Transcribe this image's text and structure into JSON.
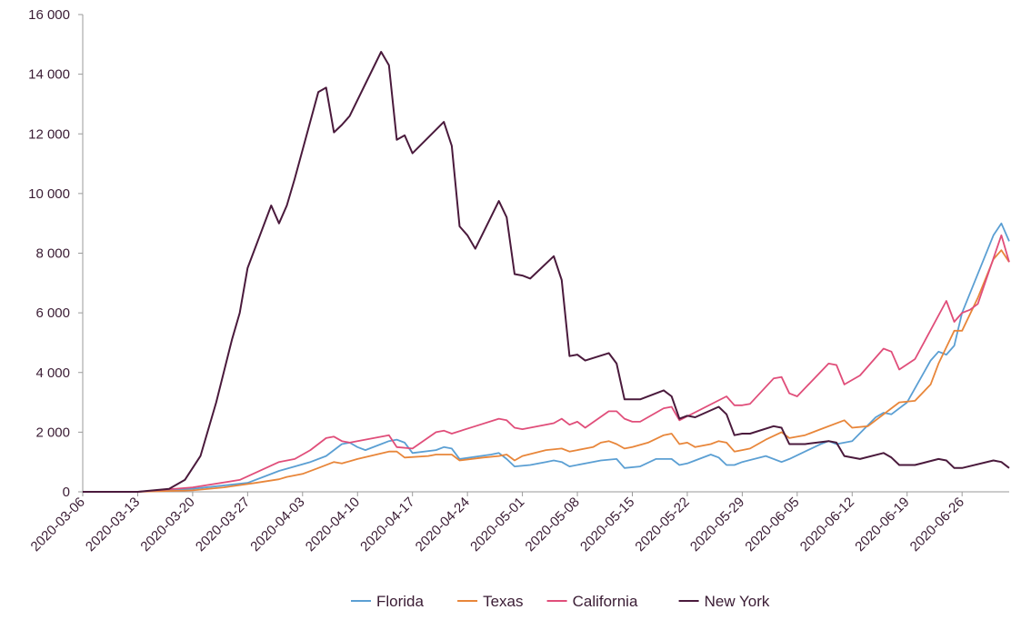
{
  "chart_data": {
    "type": "line",
    "title": "",
    "xlabel": "",
    "ylabel": "",
    "x_start": "2020-03-06",
    "x_end": "2020-07-02",
    "ylim": [
      0,
      16000
    ],
    "y_ticks": [
      {
        "value": 0,
        "label": "0"
      },
      {
        "value": 2000,
        "label": "2 000"
      },
      {
        "value": 4000,
        "label": "4 000"
      },
      {
        "value": 6000,
        "label": "6 000"
      },
      {
        "value": 8000,
        "label": "8 000"
      },
      {
        "value": 10000,
        "label": "10 000"
      },
      {
        "value": 12000,
        "label": "12 000"
      },
      {
        "value": 14000,
        "label": "14 000"
      },
      {
        "value": 16000,
        "label": "16 000"
      }
    ],
    "x_ticks": [
      "2020-03-06",
      "2020-03-13",
      "2020-03-20",
      "2020-03-27",
      "2020-04-03",
      "2020-04-10",
      "2020-04-17",
      "2020-04-24",
      "2020-05-01",
      "2020-05-08",
      "2020-05-15",
      "2020-05-22",
      "2020-05-29",
      "2020-06-05",
      "2020-06-12",
      "2020-06-19",
      "2020-06-26"
    ],
    "grid": false,
    "legend_position": "bottom",
    "series": [
      {
        "name": "Florida",
        "color": "#5b9fd3",
        "x": [
          "2020-03-06",
          "2020-03-13",
          "2020-03-20",
          "2020-03-27",
          "2020-03-29",
          "2020-03-31",
          "2020-04-02",
          "2020-04-04",
          "2020-04-06",
          "2020-04-07",
          "2020-04-08",
          "2020-04-09",
          "2020-04-10",
          "2020-04-11",
          "2020-04-13",
          "2020-04-14",
          "2020-04-15",
          "2020-04-16",
          "2020-04-17",
          "2020-04-20",
          "2020-04-21",
          "2020-04-22",
          "2020-04-23",
          "2020-04-27",
          "2020-04-28",
          "2020-04-29",
          "2020-04-30",
          "2020-05-02",
          "2020-05-04",
          "2020-05-05",
          "2020-05-06",
          "2020-05-07",
          "2020-05-11",
          "2020-05-13",
          "2020-05-14",
          "2020-05-16",
          "2020-05-18",
          "2020-05-20",
          "2020-05-21",
          "2020-05-22",
          "2020-05-25",
          "2020-05-26",
          "2020-05-27",
          "2020-05-28",
          "2020-05-29",
          "2020-06-01",
          "2020-06-03",
          "2020-06-04",
          "2020-06-08",
          "2020-06-09",
          "2020-06-10",
          "2020-06-12",
          "2020-06-15",
          "2020-06-16",
          "2020-06-17",
          "2020-06-19",
          "2020-06-22",
          "2020-06-23",
          "2020-06-24",
          "2020-06-25",
          "2020-06-26",
          "2020-06-30",
          "2020-07-01",
          "2020-07-02"
        ],
        "values": [
          0,
          0,
          100,
          300,
          500,
          700,
          850,
          1000,
          1200,
          1400,
          1600,
          1650,
          1500,
          1400,
          1600,
          1700,
          1750,
          1650,
          1300,
          1400,
          1500,
          1450,
          1100,
          1250,
          1300,
          1100,
          850,
          900,
          1000,
          1050,
          1000,
          850,
          1050,
          1100,
          800,
          850,
          1100,
          1100,
          900,
          950,
          1250,
          1150,
          900,
          900,
          1000,
          1200,
          1000,
          1100,
          1600,
          1700,
          1600,
          1700,
          2500,
          2650,
          2600,
          3000,
          4400,
          4700,
          4600,
          4900,
          6000,
          8600,
          9000,
          8400
        ]
      },
      {
        "name": "Texas",
        "color": "#e8863a",
        "x": [
          "2020-03-06",
          "2020-03-13",
          "2020-03-20",
          "2020-03-24",
          "2020-03-28",
          "2020-03-31",
          "2020-04-01",
          "2020-04-03",
          "2020-04-05",
          "2020-04-07",
          "2020-04-08",
          "2020-04-10",
          "2020-04-14",
          "2020-04-15",
          "2020-04-16",
          "2020-04-19",
          "2020-04-20",
          "2020-04-22",
          "2020-04-23",
          "2020-04-26",
          "2020-04-28",
          "2020-04-29",
          "2020-04-30",
          "2020-05-01",
          "2020-05-04",
          "2020-05-06",
          "2020-05-07",
          "2020-05-08",
          "2020-05-10",
          "2020-05-11",
          "2020-05-12",
          "2020-05-13",
          "2020-05-14",
          "2020-05-15",
          "2020-05-17",
          "2020-05-19",
          "2020-05-20",
          "2020-05-21",
          "2020-05-22",
          "2020-05-23",
          "2020-05-25",
          "2020-05-26",
          "2020-05-27",
          "2020-05-28",
          "2020-05-29",
          "2020-05-30",
          "2020-06-01",
          "2020-06-03",
          "2020-06-04",
          "2020-06-06",
          "2020-06-08",
          "2020-06-11",
          "2020-06-12",
          "2020-06-14",
          "2020-06-17",
          "2020-06-18",
          "2020-06-20",
          "2020-06-22",
          "2020-06-23",
          "2020-06-25",
          "2020-06-26",
          "2020-06-28",
          "2020-06-30",
          "2020-07-01",
          "2020-07-02"
        ],
        "values": [
          0,
          0,
          50,
          150,
          300,
          420,
          500,
          600,
          800,
          1000,
          950,
          1100,
          1350,
          1350,
          1150,
          1200,
          1250,
          1250,
          1050,
          1150,
          1200,
          1250,
          1050,
          1200,
          1400,
          1450,
          1350,
          1400,
          1500,
          1650,
          1700,
          1600,
          1450,
          1500,
          1650,
          1900,
          1950,
          1600,
          1650,
          1500,
          1600,
          1700,
          1650,
          1350,
          1400,
          1450,
          1750,
          2000,
          1800,
          1900,
          2100,
          2400,
          2150,
          2200,
          2800,
          3000,
          3050,
          3600,
          4300,
          5400,
          5400,
          6500,
          7800,
          8100,
          7700
        ]
      },
      {
        "name": "California",
        "color": "#e04e7a",
        "x": [
          "2020-03-06",
          "2020-03-13",
          "2020-03-20",
          "2020-03-26",
          "2020-03-31",
          "2020-04-02",
          "2020-04-04",
          "2020-04-06",
          "2020-04-07",
          "2020-04-08",
          "2020-04-09",
          "2020-04-10",
          "2020-04-14",
          "2020-04-15",
          "2020-04-17",
          "2020-04-20",
          "2020-04-21",
          "2020-04-22",
          "2020-04-25",
          "2020-04-28",
          "2020-04-29",
          "2020-04-30",
          "2020-05-01",
          "2020-05-05",
          "2020-05-06",
          "2020-05-07",
          "2020-05-08",
          "2020-05-09",
          "2020-05-12",
          "2020-05-13",
          "2020-05-14",
          "2020-05-15",
          "2020-05-16",
          "2020-05-19",
          "2020-05-20",
          "2020-05-21",
          "2020-05-27",
          "2020-05-28",
          "2020-05-29",
          "2020-05-30",
          "2020-06-02",
          "2020-06-03",
          "2020-06-04",
          "2020-06-05",
          "2020-06-09",
          "2020-06-10",
          "2020-06-11",
          "2020-06-13",
          "2020-06-16",
          "2020-06-17",
          "2020-06-18",
          "2020-06-20",
          "2020-06-24",
          "2020-06-25",
          "2020-06-26",
          "2020-06-27",
          "2020-06-28",
          "2020-07-01",
          "2020-07-02"
        ],
        "values": [
          0,
          0,
          150,
          400,
          1000,
          1100,
          1400,
          1800,
          1850,
          1700,
          1650,
          1700,
          1900,
          1500,
          1450,
          2000,
          2050,
          1950,
          2200,
          2450,
          2400,
          2150,
          2100,
          2300,
          2450,
          2250,
          2350,
          2150,
          2700,
          2700,
          2450,
          2350,
          2350,
          2800,
          2850,
          2400,
          3200,
          2900,
          2900,
          2950,
          3800,
          3850,
          3300,
          3200,
          4300,
          4250,
          3600,
          3900,
          4800,
          4700,
          4100,
          4450,
          6400,
          5700,
          6000,
          6100,
          6300,
          8600,
          7700
        ]
      },
      {
        "name": "New York",
        "color": "#4a1a3c",
        "x": [
          "2020-03-06",
          "2020-03-13",
          "2020-03-17",
          "2020-03-19",
          "2020-03-21",
          "2020-03-23",
          "2020-03-25",
          "2020-03-26",
          "2020-03-27",
          "2020-03-30",
          "2020-03-31",
          "2020-04-01",
          "2020-04-02",
          "2020-04-05",
          "2020-04-06",
          "2020-04-07",
          "2020-04-08",
          "2020-04-09",
          "2020-04-13",
          "2020-04-14",
          "2020-04-15",
          "2020-04-16",
          "2020-04-17",
          "2020-04-21",
          "2020-04-22",
          "2020-04-23",
          "2020-04-24",
          "2020-04-25",
          "2020-04-28",
          "2020-04-29",
          "2020-04-30",
          "2020-05-01",
          "2020-05-02",
          "2020-05-05",
          "2020-05-06",
          "2020-05-07",
          "2020-05-08",
          "2020-05-09",
          "2020-05-12",
          "2020-05-13",
          "2020-05-14",
          "2020-05-16",
          "2020-05-19",
          "2020-05-20",
          "2020-05-21",
          "2020-05-22",
          "2020-05-23",
          "2020-05-26",
          "2020-05-27",
          "2020-05-28",
          "2020-05-29",
          "2020-05-30",
          "2020-06-02",
          "2020-06-03",
          "2020-06-04",
          "2020-06-06",
          "2020-06-09",
          "2020-06-10",
          "2020-06-11",
          "2020-06-13",
          "2020-06-16",
          "2020-06-17",
          "2020-06-18",
          "2020-06-20",
          "2020-06-23",
          "2020-06-24",
          "2020-06-25",
          "2020-06-26",
          "2020-06-30",
          "2020-07-01",
          "2020-07-02"
        ],
        "values": [
          0,
          0,
          100,
          400,
          1200,
          3000,
          5100,
          6000,
          7500,
          9600,
          9000,
          9600,
          10500,
          13400,
          13550,
          12050,
          12300,
          12600,
          14750,
          14300,
          11800,
          11950,
          11350,
          12400,
          11600,
          8900,
          8600,
          8150,
          9750,
          9200,
          7300,
          7250,
          7150,
          7900,
          7100,
          4550,
          4600,
          4400,
          4650,
          4300,
          3100,
          3100,
          3400,
          3200,
          2450,
          2550,
          2500,
          2850,
          2600,
          1900,
          1950,
          1950,
          2200,
          2150,
          1600,
          1600,
          1700,
          1650,
          1200,
          1100,
          1300,
          1150,
          900,
          900,
          1100,
          1050,
          800,
          800,
          1050,
          1000,
          800
        ]
      }
    ]
  }
}
